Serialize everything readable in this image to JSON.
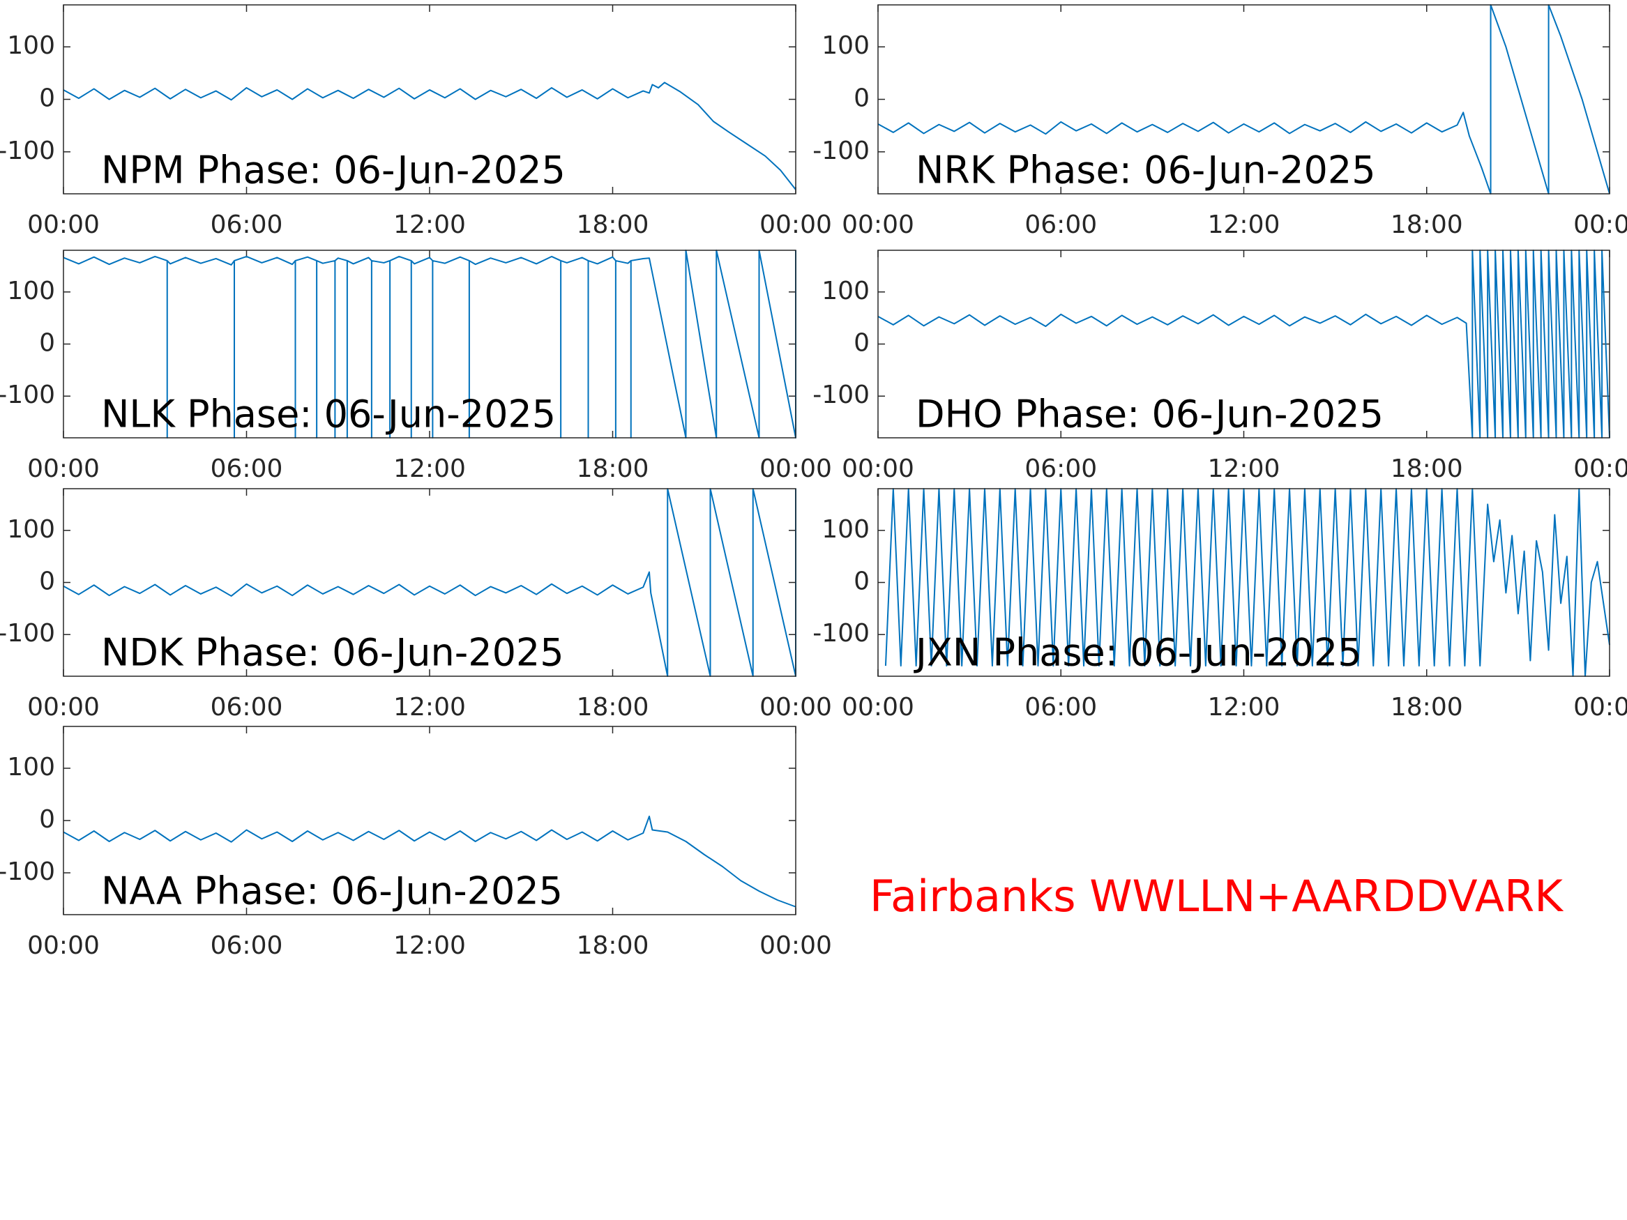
{
  "chart_data": [
    {
      "type": "line",
      "title": "NPM Phase: 06-Jun-2025",
      "x": [
        0,
        0.5,
        1,
        1.5,
        2,
        2.5,
        3,
        3.5,
        4,
        4.5,
        5,
        5.5,
        6,
        6.5,
        7,
        7.5,
        8,
        8.5,
        9,
        9.5,
        10,
        10.5,
        11,
        11.5,
        12,
        12.5,
        13,
        13.5,
        14,
        14.5,
        15,
        15.5,
        16,
        16.5,
        17,
        17.5,
        18,
        18.5,
        19,
        19.2,
        19.3,
        19.5,
        19.7,
        20.2,
        20.8,
        21.3,
        21.8,
        22.4,
        23,
        23.5,
        24
      ],
      "series": [
        {
          "color": "#0072bd",
          "values": [
            18,
            2,
            20,
            0,
            17,
            4,
            21,
            1,
            19,
            3,
            16,
            -1,
            22,
            5,
            18,
            0,
            20,
            3,
            17,
            2,
            19,
            4,
            21,
            1,
            18,
            3,
            20,
            0,
            17,
            5,
            19,
            2,
            22,
            4,
            18,
            1,
            20,
            3,
            16,
            12,
            28,
            22,
            32,
            15,
            -10,
            -42,
            -62,
            -85,
            -108,
            -135,
            -172
          ]
        }
      ],
      "xlim": [
        0,
        24
      ],
      "ylim": [
        -180,
        180
      ],
      "xticks": [
        {
          "value": 0,
          "label": "00:00"
        },
        {
          "value": 6,
          "label": "06:00"
        },
        {
          "value": 12,
          "label": "12:00"
        },
        {
          "value": 18,
          "label": "18:00"
        },
        {
          "value": 24,
          "label": "00:00"
        }
      ],
      "yticks": [
        -100,
        0,
        100
      ]
    },
    {
      "type": "line",
      "title": "NRK Phase: 06-Jun-2025",
      "x": [
        0,
        0.5,
        1,
        1.5,
        2,
        2.5,
        3,
        3.5,
        4,
        4.5,
        5,
        5.5,
        6,
        6.5,
        7,
        7.5,
        8,
        8.5,
        9,
        9.5,
        10,
        10.5,
        11,
        11.5,
        12,
        12.5,
        13,
        13.5,
        14,
        14.5,
        15,
        15.5,
        16,
        16.5,
        17,
        17.5,
        18,
        18.5,
        19,
        19.2,
        19.4,
        19.8,
        20.1,
        20.1,
        20.6,
        21.1,
        21.6,
        22.0,
        22.0,
        22.4,
        23.1,
        24
      ],
      "series": [
        {
          "color": "#0072bd",
          "values": [
            -47,
            -63,
            -45,
            -65,
            -48,
            -61,
            -44,
            -64,
            -46,
            -62,
            -49,
            -66,
            -43,
            -60,
            -47,
            -65,
            -45,
            -62,
            -48,
            -63,
            -46,
            -61,
            -44,
            -64,
            -47,
            -62,
            -45,
            -65,
            -48,
            -60,
            -46,
            -63,
            -43,
            -61,
            -47,
            -64,
            -45,
            -62,
            -49,
            -25,
            -70,
            -130,
            -180,
            180,
            100,
            0,
            -100,
            -180,
            180,
            120,
            0,
            -180
          ]
        }
      ],
      "xlim": [
        0,
        24
      ],
      "ylim": [
        -180,
        180
      ],
      "xticks": [
        {
          "value": 0,
          "label": "00:00"
        },
        {
          "value": 6,
          "label": "06:00"
        },
        {
          "value": 12,
          "label": "12:00"
        },
        {
          "value": 18,
          "label": "18:00"
        },
        {
          "value": 24,
          "label": "00:00"
        }
      ],
      "yticks": [
        -100,
        0,
        100
      ]
    },
    {
      "type": "line",
      "title": "NLK Phase: 06-Jun-2025",
      "x": [
        0,
        0.5,
        1,
        1.5,
        2,
        2.5,
        3,
        3.4,
        3.4,
        3.4,
        3.5,
        4,
        4.5,
        5,
        5.5,
        5.6,
        5.6,
        5.6,
        6,
        6.5,
        7,
        7.5,
        7.6,
        7.6,
        7.6,
        8,
        8.3,
        8.3,
        8.3,
        8.5,
        8.9,
        8.9,
        8.9,
        9,
        9.3,
        9.3,
        9.3,
        9.5,
        10,
        10.1,
        10.1,
        10.1,
        10.5,
        10.7,
        10.7,
        10.7,
        11,
        11.4,
        11.4,
        11.4,
        11.5,
        12,
        12.1,
        12.1,
        12.1,
        12.5,
        13,
        13.3,
        13.3,
        13.3,
        13.5,
        14,
        14.5,
        15,
        15.5,
        16,
        16.3,
        16.3,
        16.3,
        16.5,
        17,
        17.2,
        17.2,
        17.2,
        17.5,
        18,
        18.1,
        18.1,
        18.1,
        18.5,
        18.6,
        18.6,
        18.6,
        19,
        19.2,
        20.4,
        20.4,
        21.4,
        21.4,
        22.8,
        22.8,
        24,
        24
      ],
      "series": [
        {
          "color": "#0072bd",
          "values": [
            166,
            154,
            167,
            153,
            165,
            156,
            168,
            160,
            -180,
            160,
            154,
            166,
            155,
            164,
            152,
            160,
            -180,
            160,
            168,
            156,
            166,
            153,
            160,
            -180,
            160,
            167,
            160,
            -180,
            160,
            155,
            160,
            -180,
            160,
            165,
            160,
            -180,
            160,
            154,
            166,
            160,
            -180,
            160,
            156,
            160,
            -180,
            160,
            168,
            160,
            -180,
            160,
            154,
            166,
            160,
            -180,
            160,
            155,
            167,
            160,
            -180,
            160,
            153,
            165,
            156,
            166,
            154,
            168,
            160,
            -180,
            160,
            156,
            166,
            160,
            -180,
            160,
            154,
            167,
            160,
            -180,
            160,
            155,
            160,
            -180,
            160,
            164,
            165,
            -180,
            180,
            -180,
            180,
            -180,
            180,
            -180,
            180
          ]
        }
      ],
      "xlim": [
        0,
        24
      ],
      "ylim": [
        -180,
        180
      ],
      "xticks": [
        {
          "value": 0,
          "label": "00:00"
        },
        {
          "value": 6,
          "label": "06:00"
        },
        {
          "value": 12,
          "label": "12:00"
        },
        {
          "value": 18,
          "label": "18:00"
        },
        {
          "value": 24,
          "label": "00:00"
        }
      ],
      "yticks": [
        -100,
        0,
        100
      ]
    },
    {
      "type": "line",
      "title": "DHO Phase: 06-Jun-2025",
      "x": [
        0,
        0.5,
        1,
        1.5,
        2,
        2.5,
        3,
        3.5,
        4,
        4.5,
        5,
        5.5,
        6,
        6.5,
        7,
        7.5,
        8,
        8.5,
        9,
        9.5,
        10,
        10.5,
        11,
        11.5,
        12,
        12.5,
        13,
        13.5,
        14,
        14.5,
        15,
        15.5,
        16,
        16.5,
        17,
        17.5,
        18,
        18.5,
        19,
        19.3,
        19.5,
        19.5,
        19.75,
        19.75,
        20,
        20,
        20.25,
        20.25,
        20.5,
        20.5,
        20.75,
        20.75,
        21,
        21,
        21.25,
        21.25,
        21.5,
        21.5,
        21.75,
        21.75,
        22,
        22,
        22.25,
        22.25,
        22.5,
        22.5,
        22.75,
        22.75,
        23,
        23,
        23.25,
        23.25,
        23.5,
        23.5,
        23.75,
        23.75,
        24
      ],
      "series": [
        {
          "color": "#0072bd",
          "values": [
            53,
            37,
            55,
            35,
            52,
            39,
            56,
            36,
            54,
            38,
            51,
            34,
            57,
            40,
            53,
            35,
            55,
            38,
            52,
            37,
            54,
            39,
            56,
            36,
            53,
            38,
            55,
            35,
            52,
            40,
            54,
            37,
            57,
            39,
            53,
            36,
            55,
            38,
            51,
            40,
            -180,
            180,
            -180,
            180,
            -180,
            180,
            -180,
            180,
            -180,
            180,
            -180,
            180,
            -180,
            180,
            -180,
            180,
            -180,
            180,
            -180,
            180,
            -180,
            180,
            -180,
            180,
            -180,
            180,
            -180,
            180,
            -180,
            180,
            -180,
            180,
            -180,
            180,
            -180,
            180,
            -180
          ]
        }
      ],
      "xlim": [
        0,
        24
      ],
      "ylim": [
        -180,
        180
      ],
      "xticks": [
        {
          "value": 0,
          "label": "00:00"
        },
        {
          "value": 6,
          "label": "06:00"
        },
        {
          "value": 12,
          "label": "12:00"
        },
        {
          "value": 18,
          "label": "18:00"
        },
        {
          "value": 24,
          "label": "00:00"
        }
      ],
      "yticks": [
        -100,
        0,
        100
      ]
    },
    {
      "type": "line",
      "title": "NDK Phase: 06-Jun-2025",
      "x": [
        0,
        0.5,
        1,
        1.5,
        2,
        2.5,
        3,
        3.5,
        4,
        4.5,
        5,
        5.5,
        6,
        6.5,
        7,
        7.5,
        8,
        8.5,
        9,
        9.5,
        10,
        10.5,
        11,
        11.5,
        12,
        12.5,
        13,
        13.5,
        14,
        14.5,
        15,
        15.5,
        16,
        16.5,
        17,
        17.5,
        18,
        18.5,
        19,
        19.2,
        19.25,
        19.8,
        19.8,
        21.2,
        21.2,
        22.6,
        22.6,
        24,
        24
      ],
      "series": [
        {
          "color": "#0072bd",
          "values": [
            -7,
            -23,
            -5,
            -25,
            -8,
            -21,
            -4,
            -24,
            -6,
            -22,
            -9,
            -26,
            -3,
            -20,
            -7,
            -25,
            -5,
            -22,
            -8,
            -23,
            -6,
            -21,
            -4,
            -24,
            -7,
            -22,
            -5,
            -25,
            -8,
            -20,
            -6,
            -23,
            -3,
            -21,
            -7,
            -24,
            -5,
            -22,
            -9,
            20,
            -20,
            -180,
            180,
            -180,
            180,
            -180,
            180,
            -180,
            180
          ]
        }
      ],
      "xlim": [
        0,
        24
      ],
      "ylim": [
        -180,
        180
      ],
      "xticks": [
        {
          "value": 0,
          "label": "00:00"
        },
        {
          "value": 6,
          "label": "06:00"
        },
        {
          "value": 12,
          "label": "12:00"
        },
        {
          "value": 18,
          "label": "18:00"
        },
        {
          "value": 24,
          "label": "00:00"
        }
      ],
      "yticks": [
        -100,
        0,
        100
      ]
    },
    {
      "type": "line",
      "title": "JXN Phase: 06-Jun-2025",
      "x": [
        0.25,
        0.5,
        0.75,
        1,
        1.25,
        1.5,
        1.75,
        2,
        2.25,
        2.5,
        2.75,
        3,
        3.25,
        3.5,
        3.75,
        4,
        4.25,
        4.5,
        4.75,
        5,
        5.25,
        5.5,
        5.75,
        6,
        6.25,
        6.5,
        6.75,
        7,
        7.25,
        7.5,
        7.75,
        8,
        8.25,
        8.5,
        8.75,
        9,
        9.25,
        9.5,
        9.75,
        10,
        10.25,
        10.5,
        10.75,
        11,
        11.25,
        11.5,
        11.75,
        12,
        12.25,
        12.5,
        12.75,
        13,
        13.25,
        13.5,
        13.75,
        14,
        14.25,
        14.5,
        14.75,
        15,
        15.25,
        15.5,
        15.75,
        16,
        16.25,
        16.5,
        16.75,
        17,
        17.25,
        17.5,
        17.75,
        18,
        18.25,
        18.5,
        18.75,
        19,
        19.25,
        19.5,
        19.75,
        20,
        20.2,
        20.4,
        20.6,
        20.8,
        21,
        21.2,
        21.4,
        21.6,
        21.8,
        22,
        22.2,
        22.4,
        22.6,
        22.8,
        23,
        23.2,
        23.4,
        23.6,
        23.8,
        24
      ],
      "series": [
        {
          "color": "#0072bd",
          "values": [
            -160,
            180,
            -160,
            180,
            -160,
            180,
            -160,
            180,
            -160,
            180,
            -160,
            180,
            -160,
            180,
            -160,
            180,
            -160,
            180,
            -160,
            180,
            -160,
            180,
            -160,
            180,
            -160,
            180,
            -160,
            180,
            -160,
            180,
            -160,
            180,
            -160,
            180,
            -160,
            180,
            -160,
            180,
            -160,
            180,
            -160,
            180,
            -160,
            180,
            -160,
            180,
            -160,
            180,
            -160,
            180,
            -160,
            180,
            -160,
            180,
            -160,
            180,
            -160,
            180,
            -160,
            180,
            -160,
            180,
            -160,
            180,
            -160,
            180,
            -160,
            180,
            -160,
            180,
            -160,
            180,
            -160,
            180,
            -160,
            180,
            -160,
            180,
            -160,
            150,
            40,
            120,
            -20,
            90,
            -60,
            60,
            -150,
            80,
            20,
            -130,
            130,
            -40,
            50,
            -180,
            180,
            -180,
            0,
            40,
            -40,
            -120
          ]
        }
      ],
      "xlim": [
        0,
        24
      ],
      "ylim": [
        -180,
        180
      ],
      "xticks": [
        {
          "value": 0,
          "label": "00:00"
        },
        {
          "value": 6,
          "label": "06:00"
        },
        {
          "value": 12,
          "label": "12:00"
        },
        {
          "value": 18,
          "label": "18:00"
        },
        {
          "value": 24,
          "label": "00:00"
        }
      ],
      "yticks": [
        -100,
        0,
        100
      ]
    },
    {
      "type": "line",
      "title": "NAA Phase: 06-Jun-2025",
      "x": [
        0,
        0.5,
        1,
        1.5,
        2,
        2.5,
        3,
        3.5,
        4,
        4.5,
        5,
        5.5,
        6,
        6.5,
        7,
        7.5,
        8,
        8.5,
        9,
        9.5,
        10,
        10.5,
        11,
        11.5,
        12,
        12.5,
        13,
        13.5,
        14,
        14.5,
        15,
        15.5,
        16,
        16.5,
        17,
        17.5,
        18,
        18.5,
        19,
        19.2,
        19.3,
        19.8,
        20.4,
        21,
        21.6,
        22.2,
        22.8,
        23.4,
        24
      ],
      "series": [
        {
          "color": "#0072bd",
          "values": [
            -22,
            -38,
            -20,
            -40,
            -23,
            -36,
            -19,
            -39,
            -21,
            -37,
            -24,
            -41,
            -18,
            -35,
            -22,
            -40,
            -20,
            -37,
            -23,
            -38,
            -21,
            -36,
            -19,
            -39,
            -22,
            -37,
            -20,
            -40,
            -23,
            -35,
            -21,
            -38,
            -18,
            -36,
            -22,
            -39,
            -20,
            -37,
            -24,
            8,
            -18,
            -22,
            -40,
            -65,
            -88,
            -115,
            -135,
            -152,
            -165
          ]
        }
      ],
      "xlim": [
        0,
        24
      ],
      "ylim": [
        -180,
        180
      ],
      "xticks": [
        {
          "value": 0,
          "label": "00:00"
        },
        {
          "value": 6,
          "label": "06:00"
        },
        {
          "value": 12,
          "label": "12:00"
        },
        {
          "value": 18,
          "label": "18:00"
        },
        {
          "value": 24,
          "label": "00:00"
        }
      ],
      "yticks": [
        -100,
        0,
        100
      ]
    }
  ],
  "annotation": {
    "text": "Fairbanks WWLLN+AARDDVARK",
    "color": "#ff0000"
  }
}
